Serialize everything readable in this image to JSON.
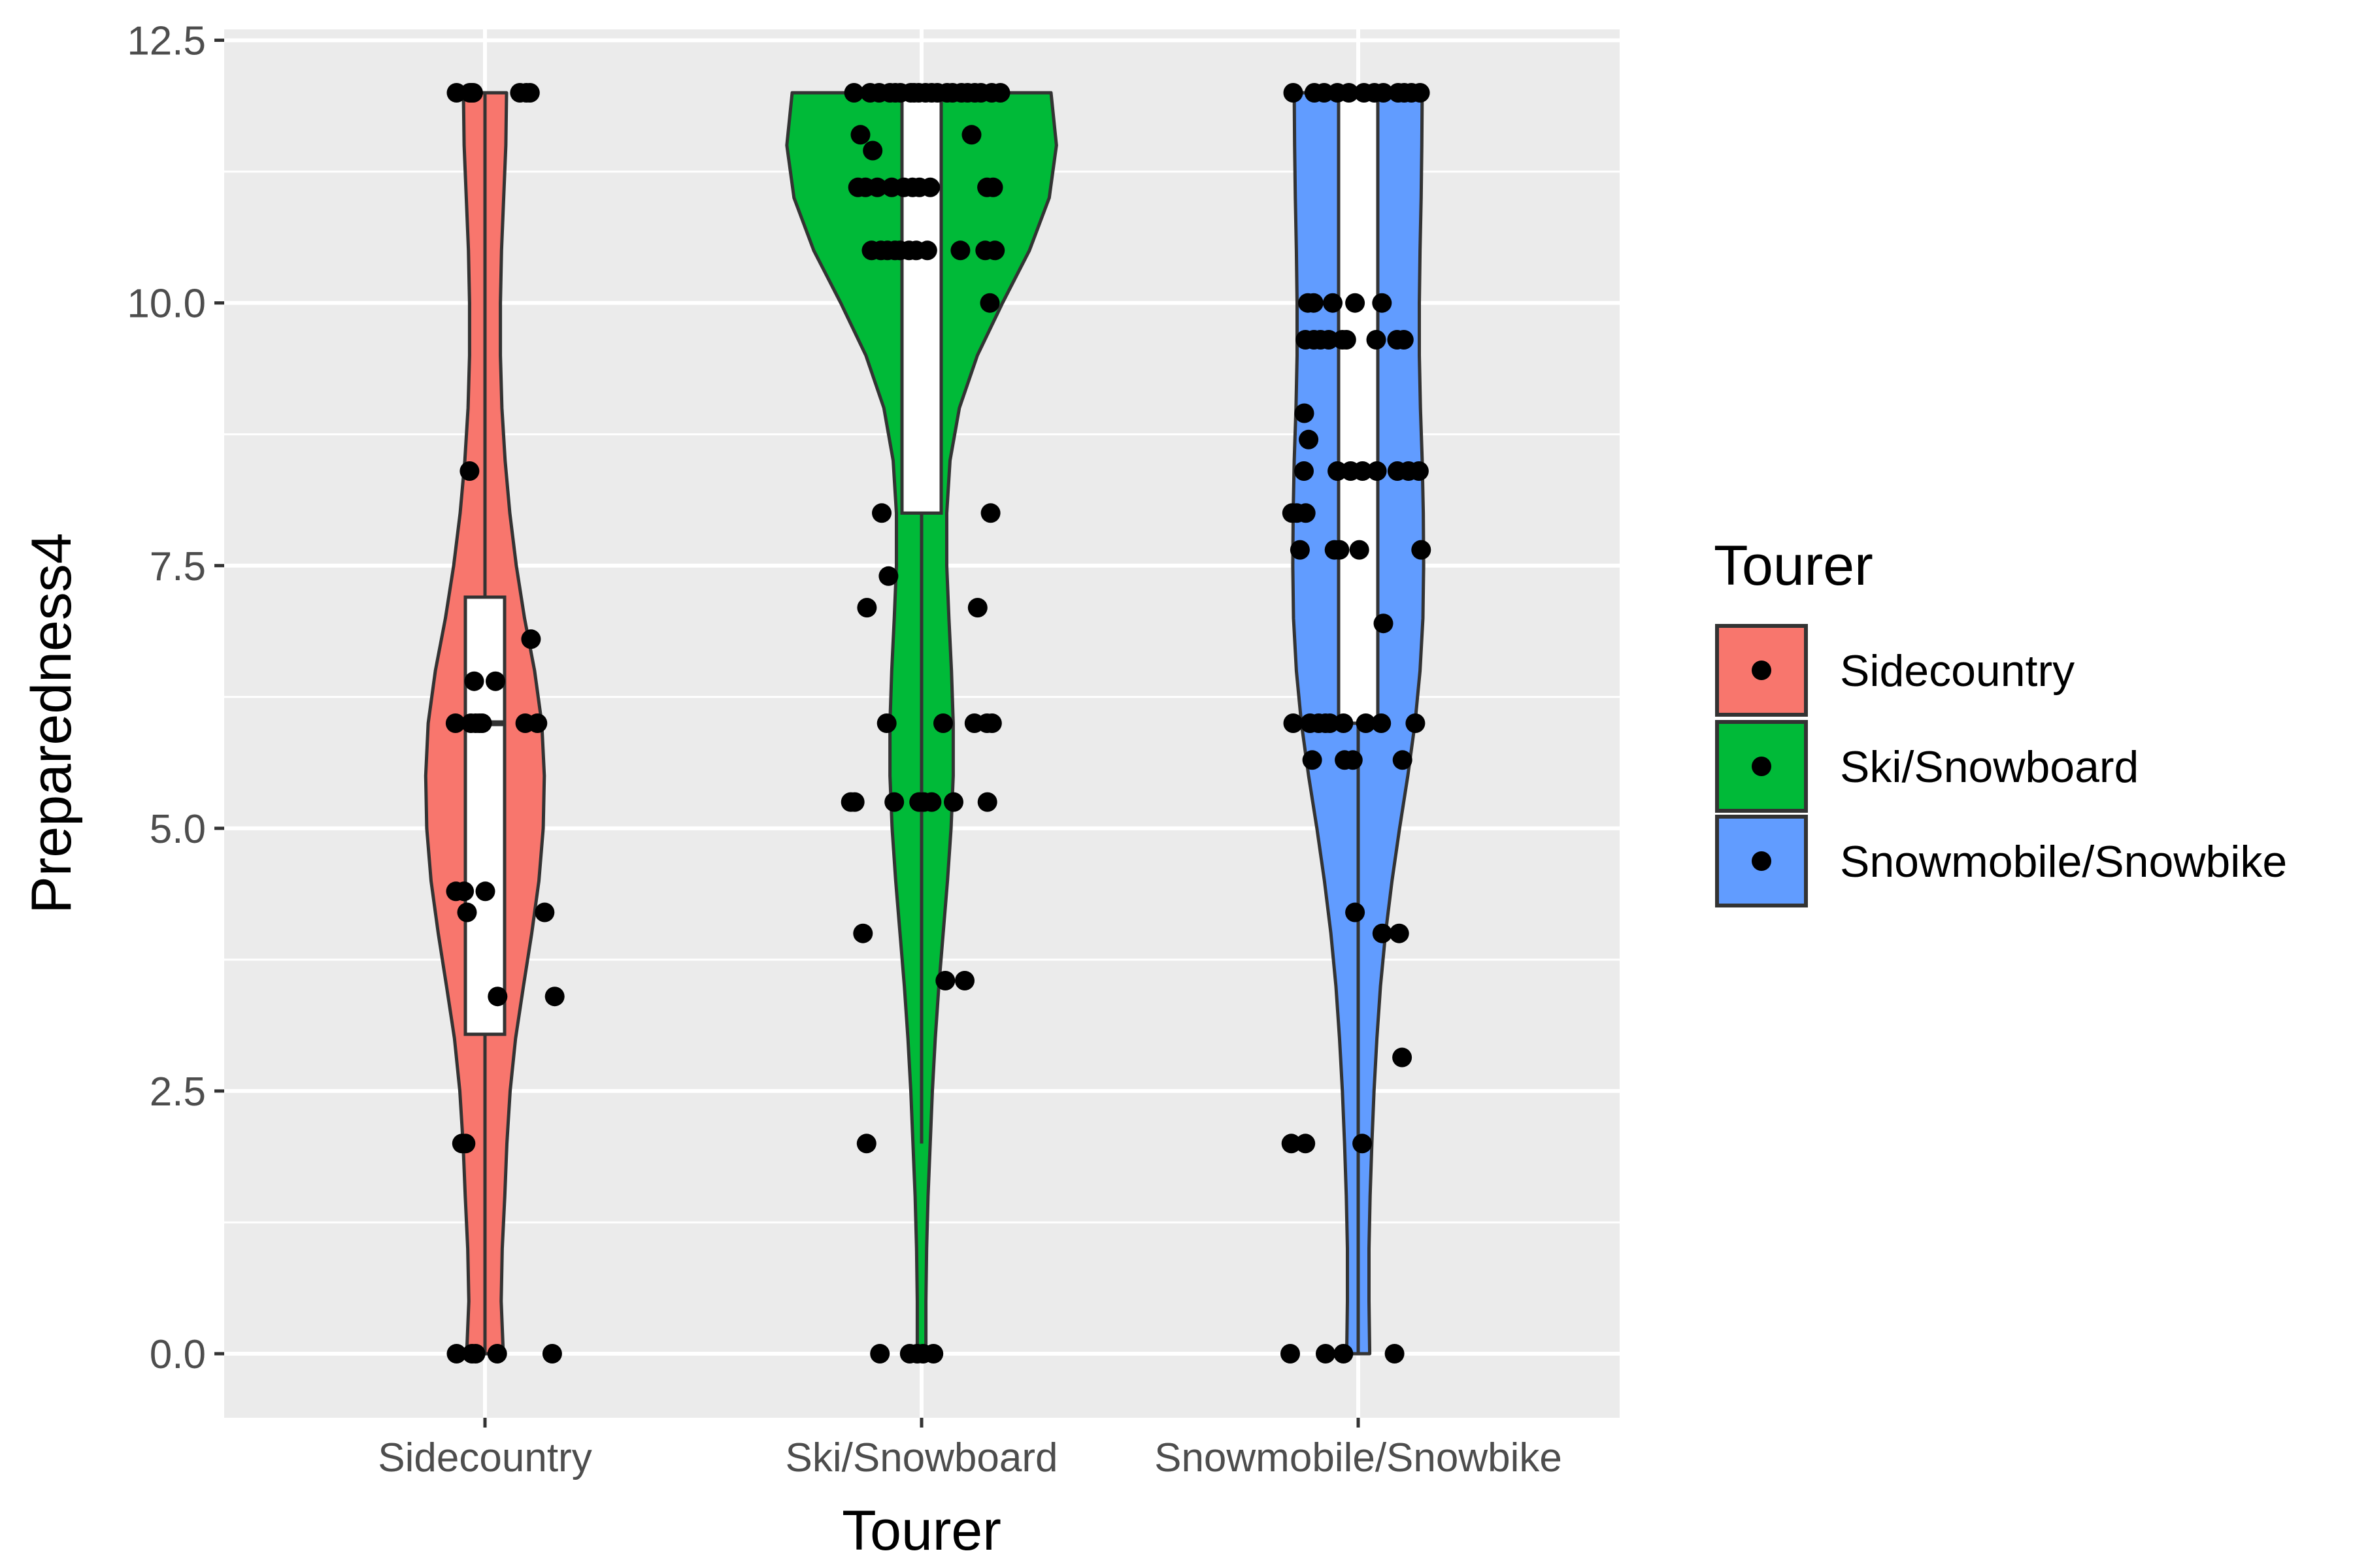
{
  "chart_data": {
    "type": "violin",
    "xlabel": "Tourer",
    "ylabel": "Preparedness4",
    "ylim": [
      -0.6,
      12.5
    ],
    "yticks": [
      0.0,
      2.5,
      5.0,
      7.5,
      10.0,
      12.5
    ],
    "ytick_labels": [
      "0.0",
      "2.5",
      "5.0",
      "7.5",
      "10.0",
      "12.5"
    ],
    "grid": true,
    "legend": {
      "title": "Tourer",
      "placement": "right",
      "entries": [
        "Sidecountry",
        "Ski/Snowboard",
        "Snowmobile/Snowbike"
      ]
    },
    "categories": [
      "Sidecountry",
      "Ski/Snowboard",
      "Snowmobile/Snowbike"
    ],
    "series": [
      {
        "name": "Sidecountry",
        "color": "#F8766D",
        "violin_range": [
          0.0,
          12.0
        ],
        "violin_profile": [
          [
            0.0,
            0.51
          ],
          [
            0.5,
            0.45
          ],
          [
            1.0,
            0.48
          ],
          [
            1.5,
            0.55
          ],
          [
            2.0,
            0.61
          ],
          [
            2.5,
            0.7
          ],
          [
            3.0,
            0.85
          ],
          [
            3.5,
            1.07
          ],
          [
            4.0,
            1.3
          ],
          [
            4.5,
            1.5
          ],
          [
            5.0,
            1.62
          ],
          [
            5.5,
            1.65
          ],
          [
            6.0,
            1.58
          ],
          [
            6.5,
            1.38
          ],
          [
            7.0,
            1.1
          ],
          [
            7.5,
            0.87
          ],
          [
            8.0,
            0.69
          ],
          [
            8.5,
            0.56
          ],
          [
            9.0,
            0.47
          ],
          [
            9.5,
            0.43
          ],
          [
            10.0,
            0.43
          ],
          [
            10.5,
            0.46
          ],
          [
            11.0,
            0.52
          ],
          [
            11.5,
            0.58
          ],
          [
            12.0,
            0.6
          ]
        ],
        "box": {
          "min": 0.0,
          "q1": 3.04,
          "median": 6.0,
          "q3": 7.2,
          "max": 12.0
        },
        "points": [
          [
            -0.79,
            12.0
          ],
          [
            -0.42,
            12.0
          ],
          [
            -0.38,
            12.0
          ],
          [
            -0.33,
            12.0
          ],
          [
            0.97,
            12.0
          ],
          [
            1.15,
            12.0
          ],
          [
            1.25,
            12.0
          ],
          [
            -0.43,
            8.4
          ],
          [
            1.28,
            6.8
          ],
          [
            -0.3,
            6.4
          ],
          [
            0.29,
            6.4
          ],
          [
            -0.82,
            6.0
          ],
          [
            -0.39,
            6.0
          ],
          [
            -0.26,
            6.0
          ],
          [
            -0.16,
            6.0
          ],
          [
            -0.08,
            6.0
          ],
          [
            1.12,
            6.0
          ],
          [
            1.46,
            6.0
          ],
          [
            -0.81,
            4.4
          ],
          [
            -0.58,
            4.4
          ],
          [
            0.01,
            4.4
          ],
          [
            -0.5,
            4.2
          ],
          [
            1.66,
            4.2
          ],
          [
            0.35,
            3.4
          ],
          [
            1.94,
            3.4
          ],
          [
            -0.64,
            2.0
          ],
          [
            -0.54,
            2.0
          ],
          [
            -0.79,
            0.0
          ],
          [
            -0.36,
            0.0
          ],
          [
            -0.26,
            0.0
          ],
          [
            0.34,
            0.0
          ],
          [
            1.87,
            0.0
          ]
        ]
      },
      {
        "name": "Ski/Snowboard",
        "color": "#00BA38",
        "violin_range": [
          0.0,
          12.0
        ],
        "violin_profile": [
          [
            0.0,
            0.12
          ],
          [
            0.5,
            0.12
          ],
          [
            1.0,
            0.14
          ],
          [
            1.5,
            0.18
          ],
          [
            2.0,
            0.24
          ],
          [
            2.5,
            0.3
          ],
          [
            3.0,
            0.38
          ],
          [
            3.5,
            0.48
          ],
          [
            4.0,
            0.6
          ],
          [
            4.5,
            0.72
          ],
          [
            5.0,
            0.82
          ],
          [
            5.5,
            0.88
          ],
          [
            6.0,
            0.88
          ],
          [
            6.5,
            0.83
          ],
          [
            7.0,
            0.76
          ],
          [
            7.5,
            0.7
          ],
          [
            8.0,
            0.7
          ],
          [
            8.5,
            0.79
          ],
          [
            9.0,
            1.05
          ],
          [
            9.5,
            1.55
          ],
          [
            10.0,
            2.25
          ],
          [
            10.5,
            3.0
          ],
          [
            11.0,
            3.55
          ],
          [
            11.5,
            3.75
          ],
          [
            12.0,
            3.6
          ]
        ],
        "box": {
          "min": 2.0,
          "q1": 8.0,
          "median": 12.0,
          "q3": 12.0,
          "max": 12.0
        },
        "points": [
          [
            -1.88,
            12.0
          ],
          [
            -1.43,
            12.0
          ],
          [
            -1.18,
            12.0
          ],
          [
            -0.88,
            12.0
          ],
          [
            -0.73,
            12.0
          ],
          [
            -0.59,
            12.0
          ],
          [
            -0.3,
            12.0
          ],
          [
            -0.21,
            12.0
          ],
          [
            -0.08,
            12.0
          ],
          [
            0.11,
            12.0
          ],
          [
            0.28,
            12.0
          ],
          [
            0.44,
            12.0
          ],
          [
            0.71,
            12.0
          ],
          [
            0.86,
            12.0
          ],
          [
            1.11,
            12.0
          ],
          [
            1.28,
            12.0
          ],
          [
            1.48,
            12.0
          ],
          [
            1.65,
            12.0
          ],
          [
            1.95,
            12.0
          ],
          [
            2.19,
            12.0
          ],
          [
            -1.7,
            11.6
          ],
          [
            1.39,
            11.6
          ],
          [
            -1.36,
            11.45
          ],
          [
            -1.77,
            11.1
          ],
          [
            -1.56,
            11.1
          ],
          [
            -1.23,
            11.1
          ],
          [
            -0.83,
            11.1
          ],
          [
            -0.49,
            11.1
          ],
          [
            -0.25,
            11.1
          ],
          [
            -0.06,
            11.1
          ],
          [
            0.24,
            11.1
          ],
          [
            1.82,
            11.1
          ],
          [
            1.99,
            11.1
          ],
          [
            -1.39,
            10.5
          ],
          [
            -1.13,
            10.5
          ],
          [
            -0.95,
            10.5
          ],
          [
            -0.74,
            10.5
          ],
          [
            -0.6,
            10.5
          ],
          [
            -0.35,
            10.5
          ],
          [
            -0.15,
            10.5
          ],
          [
            0.16,
            10.5
          ],
          [
            1.08,
            10.5
          ],
          [
            1.77,
            10.5
          ],
          [
            2.04,
            10.5
          ],
          [
            1.9,
            10.0
          ],
          [
            -1.11,
            8.0
          ],
          [
            1.92,
            8.0
          ],
          [
            -0.92,
            7.4
          ],
          [
            -1.52,
            7.1
          ],
          [
            1.56,
            7.1
          ],
          [
            -0.97,
            6.0
          ],
          [
            0.6,
            6.0
          ],
          [
            1.47,
            6.0
          ],
          [
            1.82,
            6.0
          ],
          [
            1.96,
            6.0
          ],
          [
            -1.97,
            5.25
          ],
          [
            -1.86,
            5.25
          ],
          [
            -0.76,
            5.25
          ],
          [
            -0.07,
            5.25
          ],
          [
            0.06,
            5.25
          ],
          [
            0.28,
            5.25
          ],
          [
            0.89,
            5.25
          ],
          [
            1.83,
            5.25
          ],
          [
            -1.63,
            4.0
          ],
          [
            0.66,
            3.55
          ],
          [
            1.2,
            3.55
          ],
          [
            -1.53,
            2.0
          ],
          [
            -1.16,
            0.0
          ],
          [
            -0.33,
            0.0
          ],
          [
            -0.12,
            0.0
          ],
          [
            0.04,
            0.0
          ],
          [
            0.33,
            0.0
          ]
        ]
      },
      {
        "name": "Snowmobile/Snowbike",
        "color": "#619CFF",
        "violin_range": [
          0.0,
          12.0
        ],
        "violin_profile": [
          [
            0.0,
            0.32
          ],
          [
            0.5,
            0.3
          ],
          [
            1.0,
            0.3
          ],
          [
            1.5,
            0.33
          ],
          [
            2.0,
            0.38
          ],
          [
            2.5,
            0.44
          ],
          [
            3.0,
            0.52
          ],
          [
            3.5,
            0.62
          ],
          [
            4.0,
            0.76
          ],
          [
            4.5,
            0.94
          ],
          [
            5.0,
            1.15
          ],
          [
            5.5,
            1.38
          ],
          [
            6.0,
            1.58
          ],
          [
            6.5,
            1.72
          ],
          [
            7.0,
            1.8
          ],
          [
            7.5,
            1.82
          ],
          [
            8.0,
            1.81
          ],
          [
            8.5,
            1.78
          ],
          [
            9.0,
            1.73
          ],
          [
            9.5,
            1.7
          ],
          [
            10.0,
            1.7
          ],
          [
            10.5,
            1.72
          ],
          [
            11.0,
            1.75
          ],
          [
            11.5,
            1.77
          ],
          [
            12.0,
            1.78
          ]
        ],
        "box": {
          "min": 0.0,
          "q1": 6.0,
          "median": 8.4,
          "q3": 12.0,
          "max": 12.0
        },
        "points": [
          [
            -1.81,
            12.0
          ],
          [
            -1.22,
            12.0
          ],
          [
            -0.95,
            12.0
          ],
          [
            -0.58,
            12.0
          ],
          [
            -0.26,
            12.0
          ],
          [
            0.16,
            12.0
          ],
          [
            0.45,
            12.0
          ],
          [
            0.7,
            12.0
          ],
          [
            1.11,
            12.0
          ],
          [
            1.28,
            12.0
          ],
          [
            1.48,
            12.0
          ],
          [
            1.72,
            12.0
          ],
          [
            -1.4,
            10.0
          ],
          [
            -1.24,
            10.0
          ],
          [
            -0.71,
            10.0
          ],
          [
            -0.09,
            10.0
          ],
          [
            0.66,
            10.0
          ],
          [
            -1.47,
            9.65
          ],
          [
            -1.23,
            9.65
          ],
          [
            -1.05,
            9.65
          ],
          [
            -0.82,
            9.65
          ],
          [
            -0.44,
            9.65
          ],
          [
            -0.33,
            9.65
          ],
          [
            0.5,
            9.65
          ],
          [
            1.08,
            9.65
          ],
          [
            1.27,
            9.65
          ],
          [
            -1.5,
            8.95
          ],
          [
            -1.38,
            8.7
          ],
          [
            -1.51,
            8.4
          ],
          [
            -0.58,
            8.4
          ],
          [
            -0.21,
            8.4
          ],
          [
            0.12,
            8.4
          ],
          [
            0.52,
            8.4
          ],
          [
            1.09,
            8.4
          ],
          [
            1.4,
            8.4
          ],
          [
            1.69,
            8.4
          ],
          [
            -1.84,
            8.0
          ],
          [
            -1.71,
            8.0
          ],
          [
            -1.46,
            8.0
          ],
          [
            -1.62,
            7.65
          ],
          [
            -0.66,
            7.65
          ],
          [
            -0.52,
            7.65
          ],
          [
            0.03,
            7.65
          ],
          [
            1.75,
            7.65
          ],
          [
            0.7,
            6.95
          ],
          [
            -1.81,
            6.0
          ],
          [
            -1.34,
            6.0
          ],
          [
            -1.1,
            6.0
          ],
          [
            -0.91,
            6.0
          ],
          [
            -0.79,
            6.0
          ],
          [
            -0.41,
            6.0
          ],
          [
            0.21,
            6.0
          ],
          [
            0.64,
            6.0
          ],
          [
            1.59,
            6.0
          ],
          [
            -1.28,
            5.65
          ],
          [
            -0.38,
            5.65
          ],
          [
            -0.15,
            5.65
          ],
          [
            1.23,
            5.65
          ],
          [
            -0.09,
            4.2
          ],
          [
            0.67,
            4.0
          ],
          [
            1.14,
            4.0
          ],
          [
            1.22,
            2.82
          ],
          [
            -1.86,
            2.0
          ],
          [
            -1.47,
            2.0
          ],
          [
            0.11,
            2.0
          ],
          [
            -1.89,
            0.0
          ],
          [
            -0.91,
            0.0
          ],
          [
            -0.41,
            0.0
          ],
          [
            1.01,
            0.0
          ]
        ]
      }
    ]
  }
}
